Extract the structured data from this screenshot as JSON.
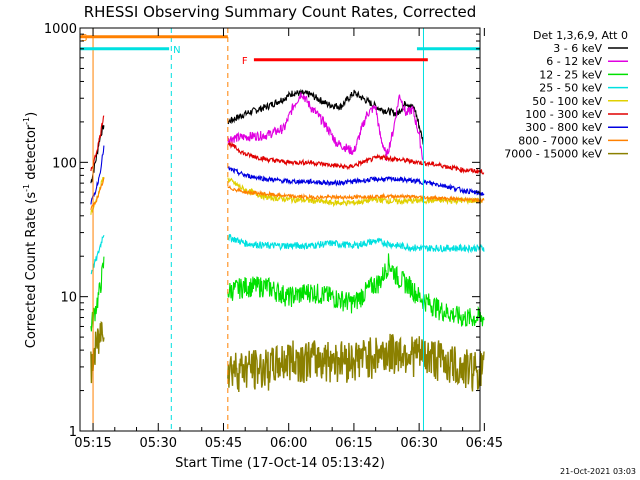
{
  "chart_data": {
    "type": "line",
    "title": "RHESSI Observing Summary Count Rates, Corrected",
    "xlabel": "Start Time (17-Oct-14 05:13:42)",
    "ylabel_main": "Corrected Count Rate (s",
    "ylabel_sup1": "-1",
    "ylabel_mid": " detector",
    "ylabel_sup2": "-1",
    "ylabel_end": ")",
    "yscale": "log",
    "ylim": [
      1,
      1000
    ],
    "xlim_minutes": [
      -3,
      89
    ],
    "x_ticks": [
      {
        "m": 0,
        "label": "05:15"
      },
      {
        "m": 15,
        "label": "05:30"
      },
      {
        "m": 30,
        "label": "05:45"
      },
      {
        "m": 45,
        "label": "06:00"
      },
      {
        "m": 60,
        "label": "06:15"
      },
      {
        "m": 75,
        "label": "06:30"
      },
      {
        "m": 90,
        "label": "06:45"
      }
    ],
    "y_ticks": [
      {
        "v": 1,
        "label": "1"
      },
      {
        "v": 10,
        "label": "10"
      },
      {
        "v": 100,
        "label": "100"
      },
      {
        "v": 1000,
        "label": "1000"
      }
    ],
    "legend_header": "Det 1,3,6,9, Att 0",
    "footer_date": "21-Oct-2021 03:03",
    "series": [
      {
        "name": "3 - 6 keV",
        "color": "#000000",
        "m": [
          -0.5,
          0.8,
          1.5,
          2.5,
          31,
          35,
          40,
          44,
          46,
          50,
          54,
          57,
          60,
          62,
          66,
          70,
          72,
          74,
          76
        ],
        "values": [
          70,
          110,
          150,
          190,
          200,
          230,
          260,
          300,
          330,
          320,
          270,
          260,
          330,
          300,
          250,
          230,
          280,
          250,
          140
        ]
      },
      {
        "name": "6 - 12 keV",
        "color": "#e000e0",
        "m": [
          31,
          35,
          40,
          44,
          46,
          48,
          50,
          53,
          56,
          60,
          63,
          65,
          66,
          67.5,
          69,
          70.5,
          72,
          73.5,
          75,
          76
        ],
        "values": [
          150,
          155,
          160,
          180,
          260,
          330,
          260,
          200,
          140,
          120,
          230,
          260,
          160,
          110,
          170,
          320,
          230,
          250,
          160,
          100
        ]
      },
      {
        "name": "12 - 25 keV",
        "color": "#00e000",
        "m": [
          -0.5,
          0.5,
          1.5,
          2.5,
          31,
          35,
          40,
          45,
          50,
          55,
          60,
          64,
          66,
          68,
          70,
          73,
          75,
          80,
          85,
          90
        ],
        "values": [
          6,
          8,
          11,
          18,
          11,
          12,
          12,
          10,
          11,
          10,
          9,
          12,
          13,
          18,
          14,
          12,
          10,
          8,
          7,
          7
        ]
      },
      {
        "name": "25 - 50 keV",
        "color": "#00e0e0",
        "m": [
          -0.5,
          1,
          2.5,
          31,
          35,
          40,
          45,
          50,
          55,
          60,
          65,
          70,
          75,
          80,
          85,
          90
        ],
        "values": [
          15,
          20,
          30,
          28,
          25,
          24,
          24,
          24,
          25,
          24,
          26,
          24,
          23,
          23,
          23,
          23
        ]
      },
      {
        "name": "50 - 100 keV",
        "color": "#e0d000",
        "m": [
          -0.5,
          0.5,
          1.5,
          2.5,
          31,
          35,
          40,
          45,
          50,
          55,
          60,
          65,
          70,
          75,
          80,
          85,
          90
        ],
        "values": [
          42,
          50,
          62,
          80,
          75,
          62,
          55,
          53,
          52,
          50,
          50,
          53,
          51,
          52,
          52,
          52,
          52
        ]
      },
      {
        "name": "100 - 300 keV",
        "color": "#e00000",
        "m": [
          -0.5,
          0.5,
          1.5,
          2.5,
          31,
          35,
          40,
          45,
          50,
          55,
          59,
          62,
          66,
          70,
          75,
          80,
          85,
          90
        ],
        "values": [
          85,
          110,
          150,
          230,
          140,
          115,
          105,
          100,
          100,
          95,
          92,
          100,
          110,
          105,
          100,
          95,
          88,
          85
        ]
      },
      {
        "name": "300 - 800 keV",
        "color": "#0000e0",
        "m": [
          -0.5,
          0.5,
          1.5,
          2.5,
          31,
          35,
          40,
          45,
          50,
          55,
          60,
          65,
          70,
          75,
          80,
          85,
          90
        ],
        "values": [
          50,
          60,
          80,
          130,
          90,
          80,
          75,
          72,
          72,
          70,
          72,
          75,
          75,
          72,
          68,
          62,
          58
        ]
      },
      {
        "name": "800 - 7000 keV",
        "color": "#ff8000",
        "m": [
          -0.5,
          0.5,
          1.5,
          2.5,
          31,
          35,
          40,
          45,
          50,
          55,
          60,
          65,
          70,
          75,
          80,
          85,
          90
        ],
        "values": [
          45,
          50,
          60,
          75,
          65,
          60,
          58,
          56,
          55,
          55,
          55,
          56,
          56,
          55,
          54,
          53,
          52
        ]
      },
      {
        "name": "7000 - 15000 keV",
        "color": "#8b8000",
        "m": [
          -0.5,
          0.5,
          1.5,
          2.5,
          31,
          35,
          40,
          45,
          50,
          55,
          60,
          65,
          70,
          75,
          80,
          85,
          90
        ],
        "values": [
          3,
          4,
          5,
          7,
          3,
          3,
          3,
          3.5,
          3.5,
          3.5,
          3.5,
          3.8,
          4,
          3.8,
          3.5,
          3,
          3
        ]
      }
    ],
    "state_bars": [
      {
        "flag": "S",
        "label_shown": true,
        "color": "#ff8000",
        "m_start": -3,
        "m_end": 31,
        "value": 860
      },
      {
        "flag": "N",
        "label_shown": true,
        "color": "#00e0e0",
        "m_start": -3,
        "m_end": 17.5,
        "value": 700
      },
      {
        "flag": "F",
        "label_shown": true,
        "color": "#ff0000",
        "m_start": 37,
        "m_end": 77,
        "value": 580
      },
      {
        "flag": "N",
        "label_shown": false,
        "color": "#00e0e0",
        "m_start": 74.5,
        "m_end": 89,
        "value": 700
      }
    ],
    "vertical_markers": [
      {
        "m": 0,
        "color": "#ff8000",
        "style": "solid"
      },
      {
        "m": 18,
        "color": "#00e0e0",
        "style": "dashed"
      },
      {
        "m": 31,
        "color": "#ff8000",
        "style": "dashed"
      },
      {
        "m": 76,
        "color": "#00e0e0",
        "style": "solid"
      },
      {
        "m": 89,
        "color": "#00e0e0",
        "style": "dashed"
      }
    ]
  }
}
